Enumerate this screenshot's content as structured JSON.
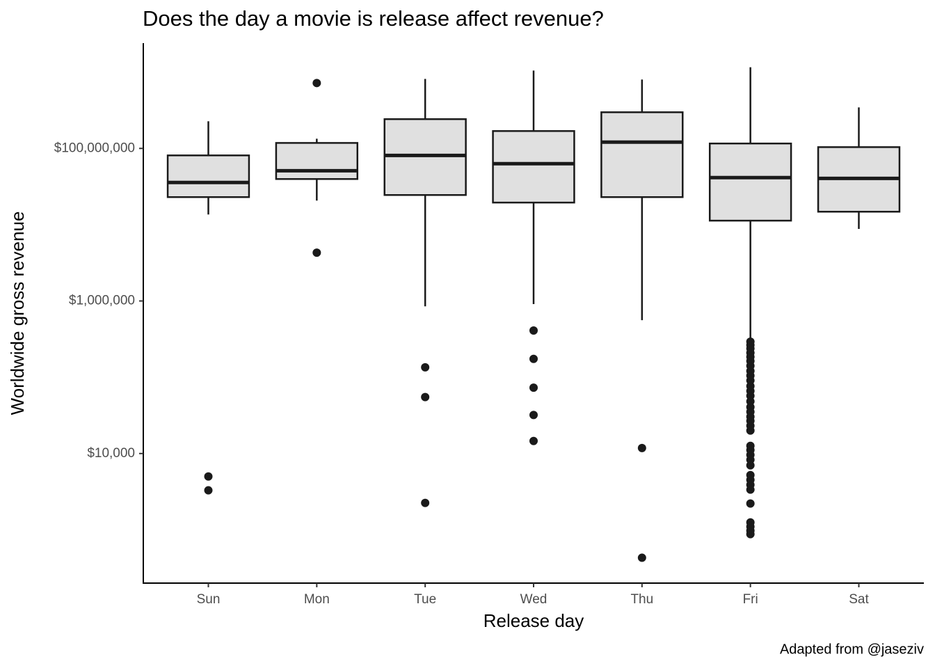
{
  "chart_data": {
    "type": "box",
    "title": "Does the day a movie is release affect revenue?",
    "x_label": "Release day",
    "y_label": "Worldwide gross revenue",
    "caption": "Adapted from @jaseziv",
    "categories": [
      "Sun",
      "Mon",
      "Tue",
      "Wed",
      "Thu",
      "Fri",
      "Sat"
    ],
    "log_scale_y": true,
    "ylim": [
      200,
      2400000000
    ],
    "yticks": [
      {
        "value": 10000,
        "label": "$10,000"
      },
      {
        "value": 1000000,
        "label": "$1,000,000"
      },
      {
        "value": 100000000,
        "label": "$100,000,000"
      }
    ],
    "box_fill": "#e0e0e0",
    "line_color": "#1a1a1a",
    "boxes": [
      {
        "whislo": 13600000,
        "q1": 23000000,
        "med": 35800000,
        "q3": 81000000,
        "whishi": 227000000,
        "outliers": [
          5000,
          3290
        ]
      },
      {
        "whislo": 20700000,
        "q1": 39700000,
        "med": 51000000,
        "q3": 118000000,
        "whishi": 134000000,
        "outliers": [
          720000000,
          4300000
        ]
      },
      {
        "whislo": 850000,
        "q1": 24500000,
        "med": 81000000,
        "q3": 242000000,
        "whishi": 815000000,
        "outliers": [
          135000,
          55000,
          2250
        ]
      },
      {
        "whislo": 910000,
        "q1": 19500000,
        "med": 63000000,
        "q3": 169000000,
        "whishi": 1050000000,
        "outliers": [
          410000,
          174000,
          73000,
          32000,
          14600
        ]
      },
      {
        "whislo": 560000,
        "q1": 23000000,
        "med": 121000000,
        "q3": 298000000,
        "whishi": 800000000,
        "outliers": [
          11800,
          430
        ]
      },
      {
        "whislo": 326000,
        "q1": 11300000,
        "med": 41400000,
        "q3": 116000000,
        "whishi": 1160000000,
        "outliers": [
          293000,
          264000,
          238000,
          209000,
          185000,
          163000,
          141000,
          121000,
          105000,
          90500,
          76600,
          66100,
          57000,
          48200,
          40700,
          35200,
          30400,
          26800,
          23100,
          20000,
          12600,
          11100,
          9600,
          8280,
          7000,
          5220,
          4510,
          3890,
          3360,
          2210,
          1250,
          1100,
          975,
          877
        ]
      },
      {
        "whislo": 8800000,
        "q1": 14800000,
        "med": 40500000,
        "q3": 104000000,
        "whishi": 345000000,
        "outliers": []
      }
    ]
  }
}
